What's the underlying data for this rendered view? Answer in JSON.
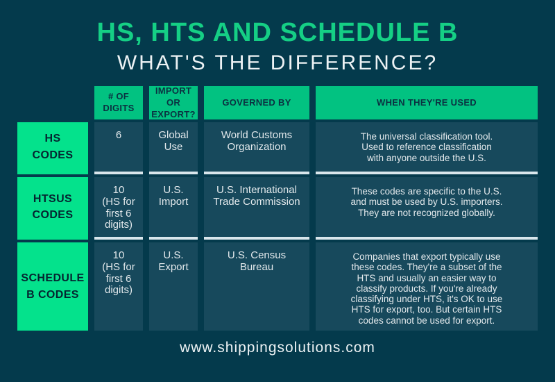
{
  "page": {
    "title": "HS, HTS AND SCHEDULE B",
    "subtitle": "WHAT'S THE DIFFERENCE?",
    "footer": "www.shippingsolutions.com"
  },
  "colors": {
    "background": "#043a4c",
    "cell_background": "#17495c",
    "header_green": "#02c281",
    "label_green": "#04e28c",
    "title_green": "#15cf85",
    "body_text": "#e3e9ec",
    "separator": "#d9e6ec"
  },
  "table": {
    "headers": [
      "# OF\nDIGITS",
      "IMPORT\nOR\nEXPORT?",
      "GOVERNED BY",
      "WHEN THEY'RE USED"
    ],
    "rows": [
      {
        "label": "HS\nCODES",
        "digits": "6",
        "import_export": "Global\nUse",
        "governed_by": "World Customs\nOrganization",
        "when_used": "The universal classification tool.\nUsed to reference classification\nwith anyone outside the U.S."
      },
      {
        "label": "HTSUS\nCODES",
        "digits": "10\n(HS for\nfirst 6\ndigits)",
        "import_export": "U.S.\nImport",
        "governed_by": "U.S. International\nTrade Commission",
        "when_used": "These codes are specific to the U.S.\nand must be used by U.S. importers.\nThey are not recognized globally."
      },
      {
        "label": "SCHEDULE\nB CODES",
        "digits": "10\n(HS for\nfirst 6\ndigits)",
        "import_export": "U.S.\nExport",
        "governed_by": "U.S. Census\nBureau",
        "when_used": "Companies that export typically use\nthese codes. They're a subset of the\nHTS and usually an easier way to\nclassify products. If you're already\nclassifying under HTS, it's OK to use\nHTS for export, too. But certain HTS\ncodes cannot be used for export."
      }
    ]
  }
}
